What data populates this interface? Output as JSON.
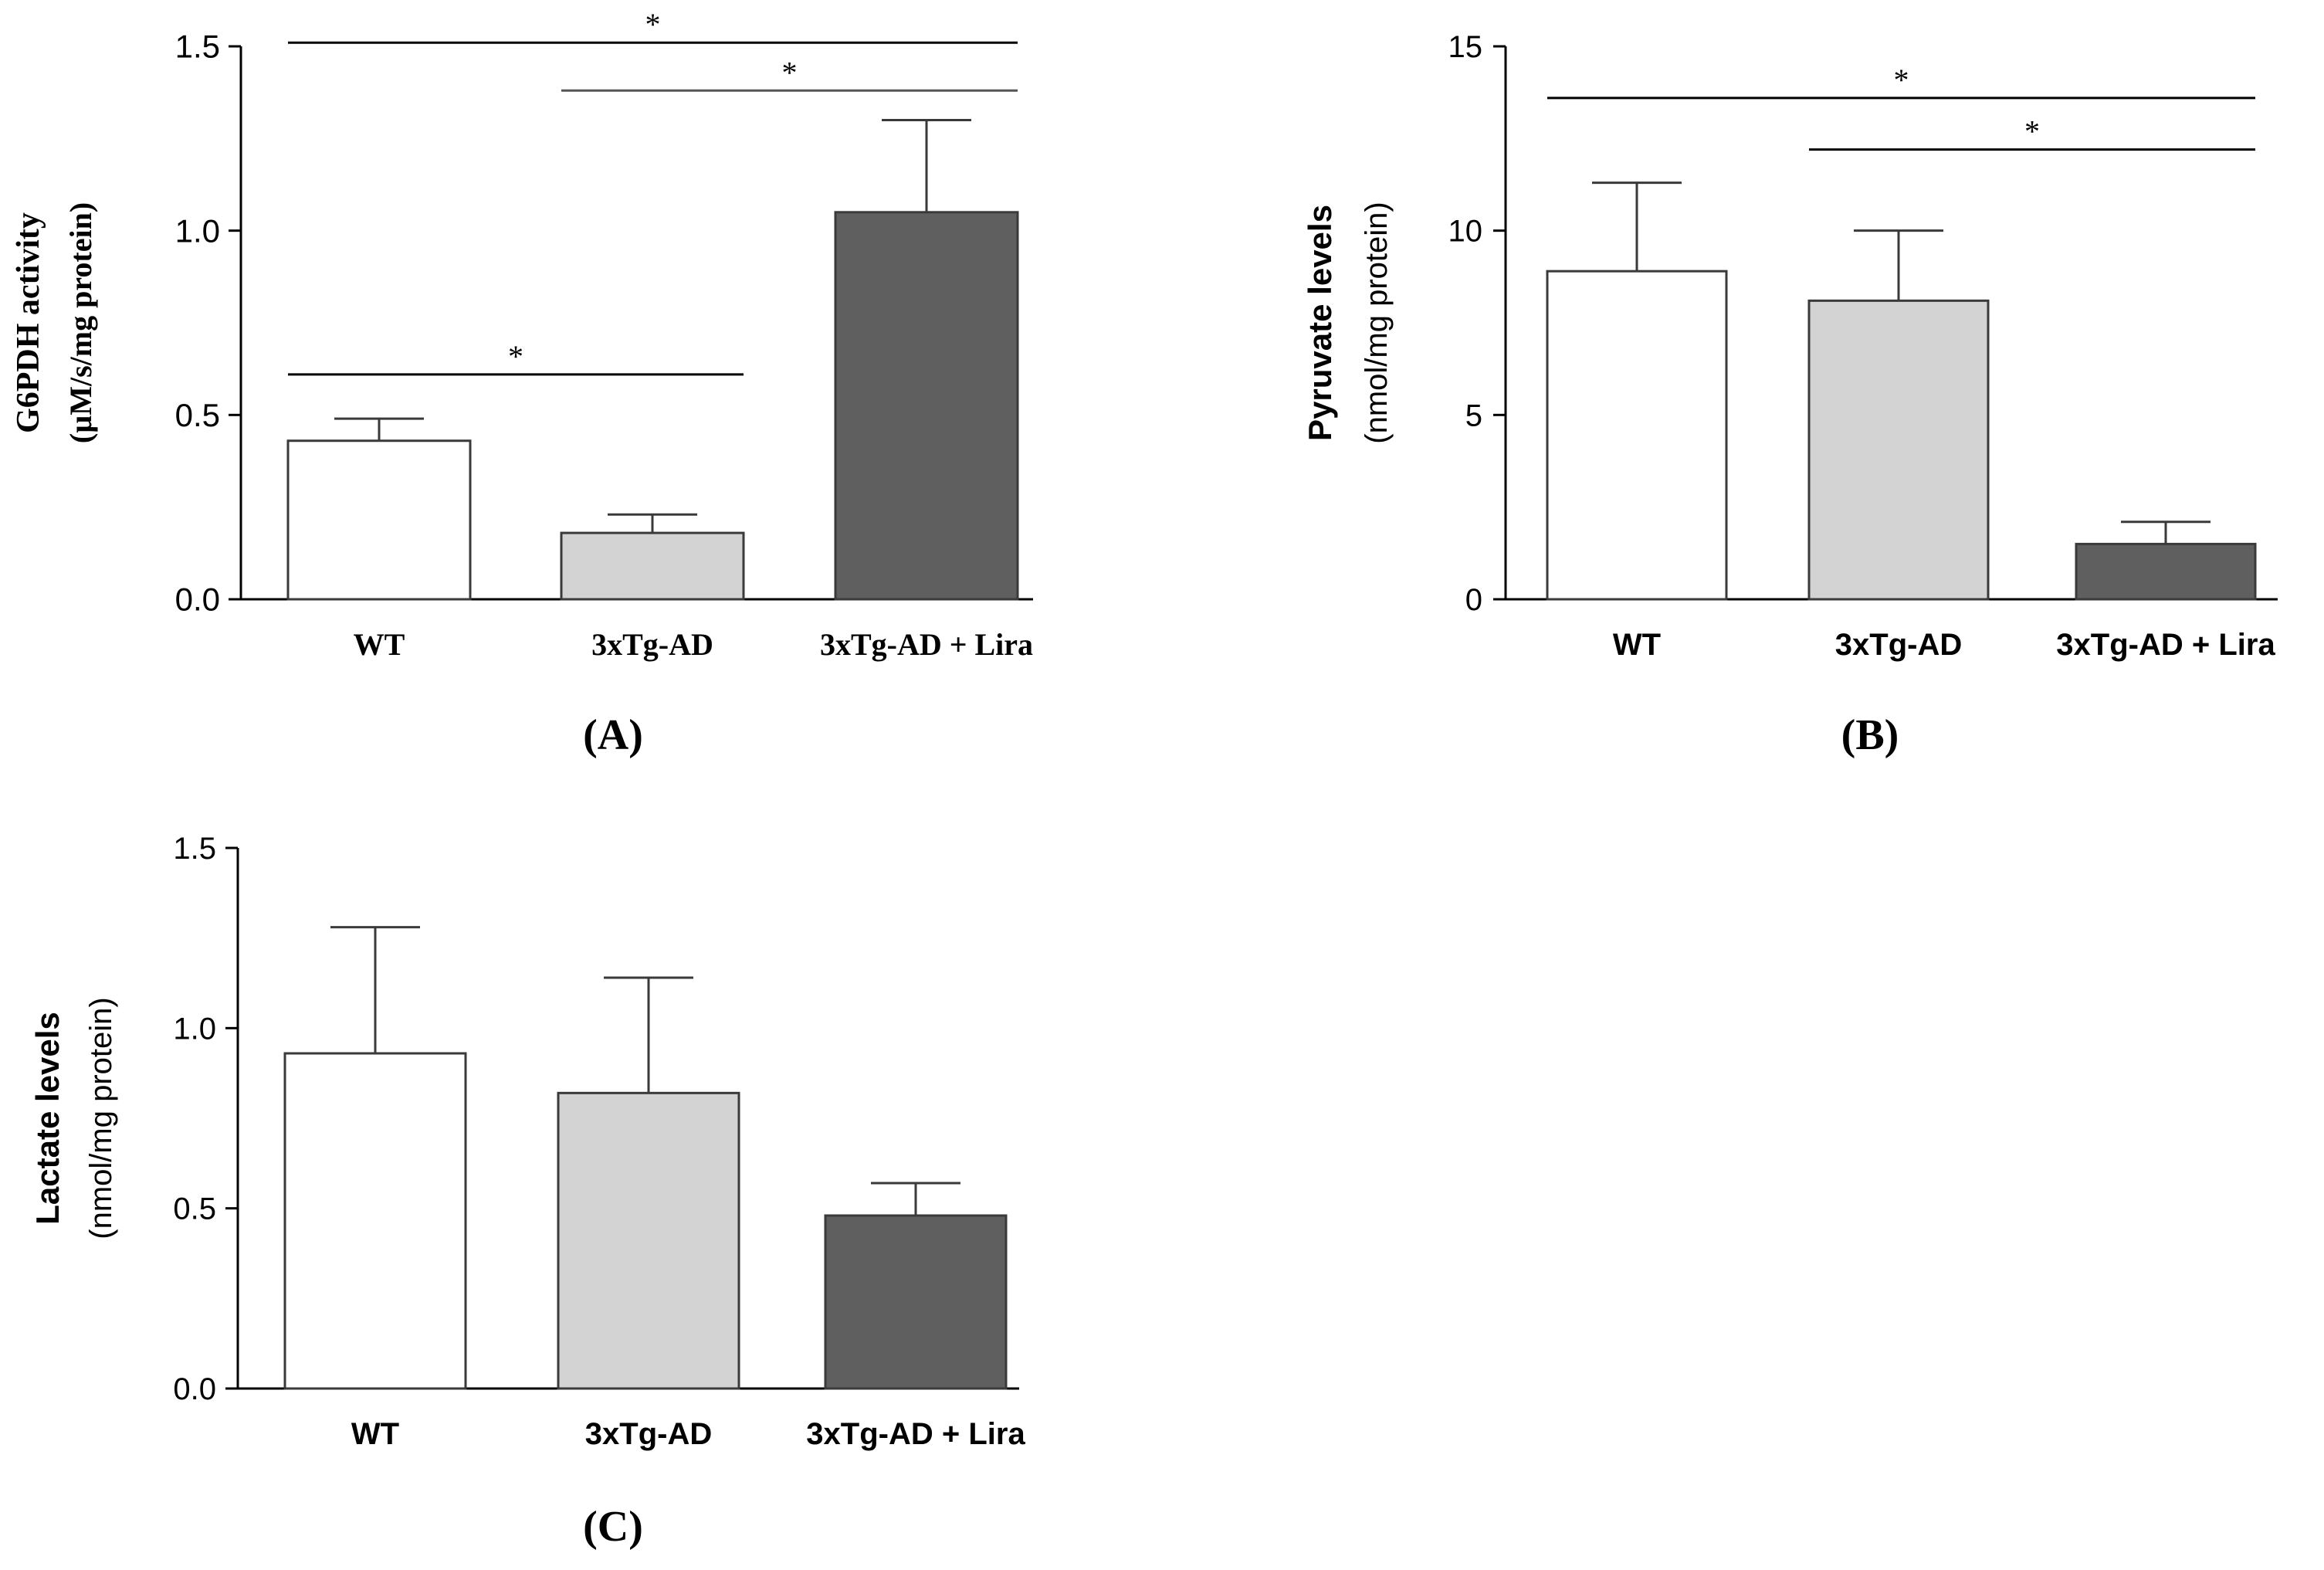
{
  "figure": {
    "colors": {
      "axis": "#000000",
      "bar_outline": "#3a3a3a",
      "wt_fill": "#ffffff",
      "tg_fill": "#d3d3d3",
      "lira_fill": "#5f5f5f"
    }
  },
  "chart_data": [
    {
      "id": "A",
      "type": "bar",
      "panel_label": "(A)",
      "categories": [
        "WT",
        "3xTg-AD",
        "3xTg-AD + Lira"
      ],
      "values": [
        0.43,
        0.18,
        1.05
      ],
      "errors": [
        0.06,
        0.05,
        0.25
      ],
      "ylabel": "G6PDH activity",
      "ylabel_unit": "(µM/s/mg protein)",
      "ylim": [
        0,
        1.5
      ],
      "yticks": [
        0,
        0.5,
        1.0,
        1.5
      ],
      "ytick_labels": [
        "0.0",
        "0.5",
        "1.0",
        "1.5"
      ],
      "significance": [
        {
          "from": 0,
          "to": 2,
          "y": 1.51,
          "label": "*"
        },
        {
          "from": 1,
          "to": 2,
          "y": 1.38,
          "label": "*"
        },
        {
          "from": 0,
          "to": 1,
          "y": 0.61,
          "label": "*"
        }
      ]
    },
    {
      "id": "B",
      "type": "bar",
      "panel_label": "(B)",
      "categories": [
        "WT",
        "3xTg-AD",
        "3xTg-AD + Lira"
      ],
      "values": [
        8.9,
        8.1,
        1.5
      ],
      "errors": [
        2.4,
        1.9,
        0.6
      ],
      "ylabel": "Pyruvate levels",
      "ylabel_unit": "(nmol/mg protein)",
      "ylim": [
        0,
        15
      ],
      "yticks": [
        0,
        5,
        10,
        15
      ],
      "ytick_labels": [
        "0",
        "5",
        "10",
        "15"
      ],
      "significance": [
        {
          "from": 0,
          "to": 2,
          "y": 13.6,
          "label": "*"
        },
        {
          "from": 1,
          "to": 2,
          "y": 12.2,
          "label": "*"
        }
      ]
    },
    {
      "id": "C",
      "type": "bar",
      "panel_label": "(C)",
      "categories": [
        "WT",
        "3xTg-AD",
        "3xTg-AD + Lira"
      ],
      "values": [
        0.93,
        0.82,
        0.48
      ],
      "errors": [
        0.35,
        0.32,
        0.09
      ],
      "ylabel": "Lactate levels",
      "ylabel_unit": "(nmol/mg protein)",
      "ylim": [
        0,
        1.5
      ],
      "yticks": [
        0,
        0.5,
        1.0,
        1.5
      ],
      "ytick_labels": [
        "0.0",
        "0.5",
        "1.0",
        "1.5"
      ],
      "significance": []
    }
  ]
}
